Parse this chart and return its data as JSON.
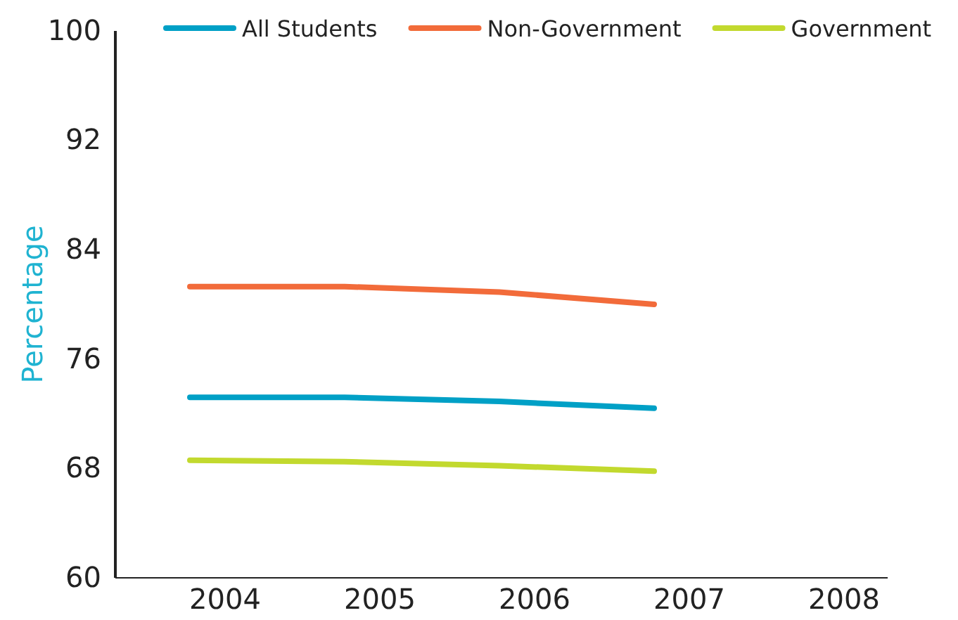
{
  "chart_data": {
    "type": "line",
    "ylabel": "Percentage",
    "categories": [
      "2004",
      "2005",
      "2006",
      "2007",
      "2008"
    ],
    "series": [
      {
        "name": "All Students",
        "color": "#00a0c6",
        "values": [
          73.2,
          73.2,
          72.9,
          72.4,
          null
        ]
      },
      {
        "name": "Non-Government",
        "color": "#f26b3a",
        "values": [
          81.3,
          81.3,
          80.9,
          80.0,
          null
        ]
      },
      {
        "name": "Government",
        "color": "#c2d92e",
        "values": [
          68.6,
          68.5,
          68.2,
          67.8,
          null
        ]
      }
    ],
    "ylim": [
      60,
      100
    ],
    "yticks": [
      60,
      68,
      76,
      84,
      92,
      100
    ],
    "legend": "top",
    "grid": false,
    "marker": "none",
    "line_style": "solid"
  }
}
